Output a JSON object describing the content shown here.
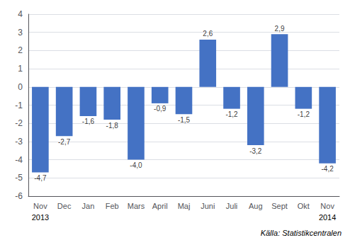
{
  "chart_data": {
    "type": "bar",
    "categories": [
      "Nov",
      "Dec",
      "Jan",
      "Feb",
      "Mars",
      "April",
      "Maj",
      "Juni",
      "Juli",
      "Aug",
      "Sept",
      "Okt",
      "Nov"
    ],
    "values": [
      -4.7,
      -2.7,
      -1.6,
      -1.8,
      -4.0,
      -0.9,
      -1.5,
      2.6,
      -1.2,
      -3.2,
      2.9,
      -1.2,
      -4.2
    ],
    "value_labels": [
      "-4,7",
      "-2,7",
      "-1,6",
      "-1,8",
      "-4,0",
      "-0,9",
      "-1,5",
      "2,6",
      "-1,2",
      "-3,2",
      "2,9",
      "-1,2",
      "-4,2"
    ],
    "data_labels": true,
    "color": "#4472C4",
    "ylim": [
      -6,
      4
    ],
    "yticks": [
      -6,
      -5,
      -4,
      -3,
      -2,
      -1,
      0,
      1,
      2,
      3,
      4
    ],
    "grid": true,
    "annotations": [
      {
        "text": "2013",
        "category_index": 0
      },
      {
        "text": "2014",
        "category_index": 12
      }
    ],
    "source": "Källa: Statistikcentralen"
  }
}
